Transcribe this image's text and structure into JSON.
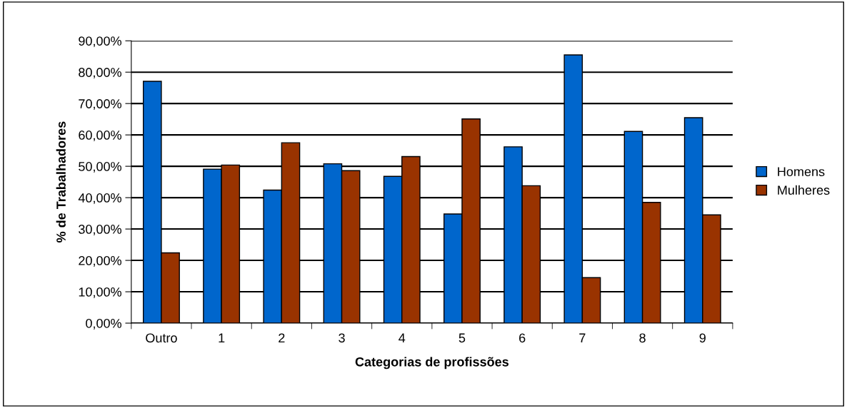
{
  "chart_data": {
    "type": "bar",
    "xlabel": "Categorias de profissões",
    "ylabel": "% de Trabalhadores",
    "categories": [
      "Outro",
      "1",
      "2",
      "3",
      "4",
      "5",
      "6",
      "7",
      "8",
      "9"
    ],
    "series": [
      {
        "name": "Homens",
        "color": "#0066cc",
        "values": [
          77.1,
          49.1,
          42.4,
          50.8,
          46.8,
          34.8,
          56.2,
          85.5,
          61.1,
          65.5
        ]
      },
      {
        "name": "Mulheres",
        "color": "#993300",
        "values": [
          22.4,
          50.4,
          57.5,
          48.6,
          53.1,
          65.1,
          43.8,
          14.5,
          38.5,
          34.5
        ]
      }
    ],
    "ylim": [
      0,
      90
    ],
    "yticks": [
      {
        "value": 0,
        "label": "0,00%"
      },
      {
        "value": 10,
        "label": "10,00%"
      },
      {
        "value": 20,
        "label": "20,00%"
      },
      {
        "value": 30,
        "label": "30,00%"
      },
      {
        "value": 40,
        "label": "40,00%"
      },
      {
        "value": 50,
        "label": "50,00%"
      },
      {
        "value": 60,
        "label": "60,00%"
      },
      {
        "value": 70,
        "label": "70,00%"
      },
      {
        "value": 80,
        "label": "80,00%"
      },
      {
        "value": 90,
        "label": "90,00%"
      }
    ],
    "grid": "y",
    "legend": "right"
  }
}
